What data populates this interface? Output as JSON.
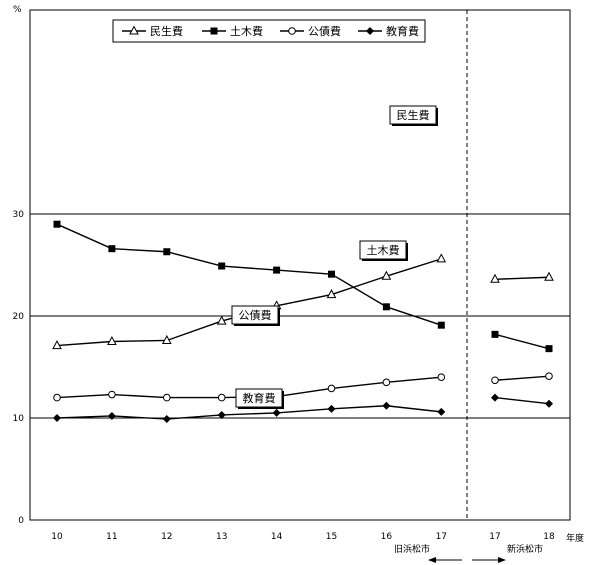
{
  "chart_data": {
    "type": "line",
    "y_unit": "%",
    "x_unit": "年度",
    "ylim": [
      0,
      50
    ],
    "yticks": [
      0,
      10,
      20,
      30
    ],
    "grid_lines": [
      10,
      20,
      30
    ],
    "legend_placement": "top",
    "segments": [
      {
        "label": "旧浜松市",
        "categories": [
          "10",
          "11",
          "12",
          "13",
          "14",
          "15",
          "16",
          "17"
        ]
      },
      {
        "label": "新浜松市",
        "categories": [
          "17",
          "18"
        ]
      }
    ],
    "series": [
      {
        "name": "民生費",
        "marker": "triangle-open",
        "old": [
          17.1,
          17.5,
          17.6,
          19.5,
          21.0,
          22.1,
          23.9,
          25.6
        ],
        "new": [
          23.6,
          23.8
        ]
      },
      {
        "name": "土木費",
        "marker": "square-filled",
        "old": [
          29.0,
          26.6,
          26.3,
          24.9,
          24.5,
          24.1,
          20.9,
          19.1
        ],
        "new": [
          18.2,
          16.8
        ]
      },
      {
        "name": "公債費",
        "marker": "circle-open",
        "old": [
          12.0,
          12.3,
          12.0,
          12.0,
          12.1,
          12.9,
          13.5,
          14.0
        ],
        "new": [
          13.7,
          14.1
        ]
      },
      {
        "name": "教育費",
        "marker": "diamond-filled",
        "old": [
          10.0,
          10.2,
          9.9,
          10.3,
          10.5,
          10.9,
          11.2,
          10.6
        ],
        "new": [
          12.0,
          11.4
        ]
      }
    ],
    "callouts": [
      {
        "series": "民生費",
        "text": "民生費"
      },
      {
        "series": "土木費",
        "text": "土木費"
      },
      {
        "series": "公債費",
        "text": "公債費"
      },
      {
        "series": "教育費",
        "text": "教育費"
      }
    ]
  }
}
